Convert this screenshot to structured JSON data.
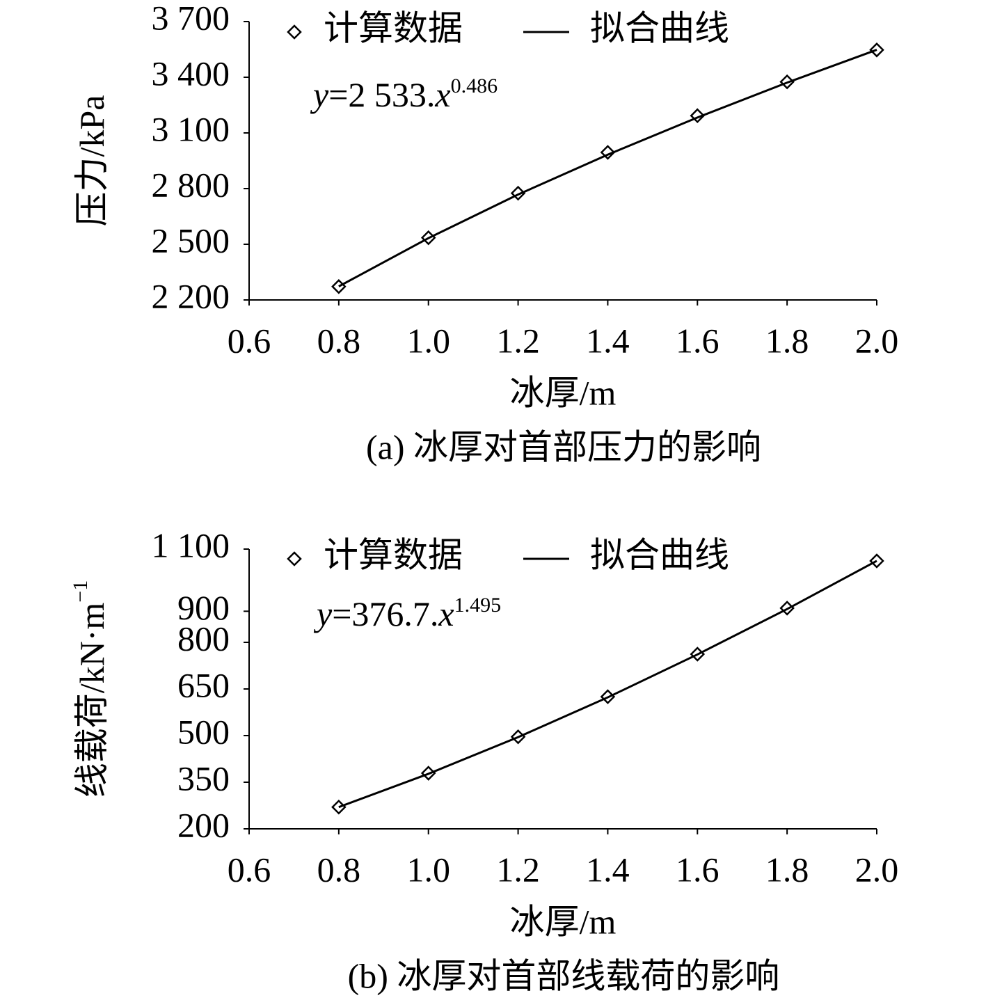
{
  "chart_data": [
    {
      "type": "line",
      "caption": "(a) 冰厚对首部压力的影响",
      "x_label": "冰厚/m",
      "y_label": "压力/kPa",
      "equation": {
        "y": "y",
        "rhs": "=2 533.",
        "x": "x",
        "exponent": "0.486"
      },
      "x": [
        0.8,
        1.0,
        1.2,
        1.4,
        1.6,
        1.8,
        2.0
      ],
      "series": [
        {
          "name": "计算数据",
          "style": "marker",
          "marker": "diamond",
          "color": "#000000",
          "values": [
            2272,
            2535,
            2775,
            2995,
            3193,
            3375,
            3547
          ]
        },
        {
          "name": "拟合曲线",
          "style": "line",
          "color": "#000000",
          "values": [
            2273,
            2533,
            2768,
            2983,
            3183,
            3371,
            3548
          ]
        }
      ],
      "xlim": [
        0.6,
        2.0
      ],
      "xticks": [
        0.6,
        0.8,
        {
          "value": 1,
          "label": "1.0"
        },
        1.2,
        1.4,
        1.6,
        1.8,
        {
          "value": 2,
          "label": "2.0"
        }
      ],
      "ylim": [
        2200,
        3700
      ],
      "yticks": [
        {
          "value": 2200,
          "label": "2 200"
        },
        {
          "value": 2500,
          "label": "2 500"
        },
        {
          "value": 2800,
          "label": "2 800"
        },
        {
          "value": 3100,
          "label": "3 100"
        },
        {
          "value": 3400,
          "label": "3 400"
        },
        {
          "value": 3700,
          "label": "3 700"
        }
      ],
      "grid": false
    },
    {
      "type": "line",
      "caption": "(b) 冰厚对首部线载荷的影响",
      "x_label": "冰厚/m",
      "y_label": "线载荷/kN·m",
      "y_label_superscript": "−1",
      "equation": {
        "y": "y",
        "rhs": "=376.7.",
        "x": "x",
        "exponent": "1.495"
      },
      "x": [
        0.8,
        1.0,
        1.2,
        1.4,
        1.6,
        1.8,
        2.0
      ],
      "series": [
        {
          "name": "计算数据",
          "style": "marker",
          "marker": "diamond",
          "color": "#000000",
          "values": [
            270,
            379,
            496,
            625,
            762,
            910,
            1062
          ]
        },
        {
          "name": "拟合曲线",
          "style": "line",
          "color": "#000000",
          "values": [
            270,
            377,
            495,
            623,
            761,
            907,
            1062
          ]
        }
      ],
      "xlim": [
        0.6,
        2.0
      ],
      "xticks": [
        0.6,
        0.8,
        {
          "value": 1,
          "label": "1.0"
        },
        1.2,
        1.4,
        1.6,
        1.8,
        {
          "value": 2,
          "label": "2.0"
        }
      ],
      "ylim": [
        200,
        1100
      ],
      "yticks": [
        200,
        350,
        500,
        650,
        800,
        900,
        {
          "value": 1100,
          "label": "1 100"
        }
      ],
      "grid": false
    }
  ]
}
